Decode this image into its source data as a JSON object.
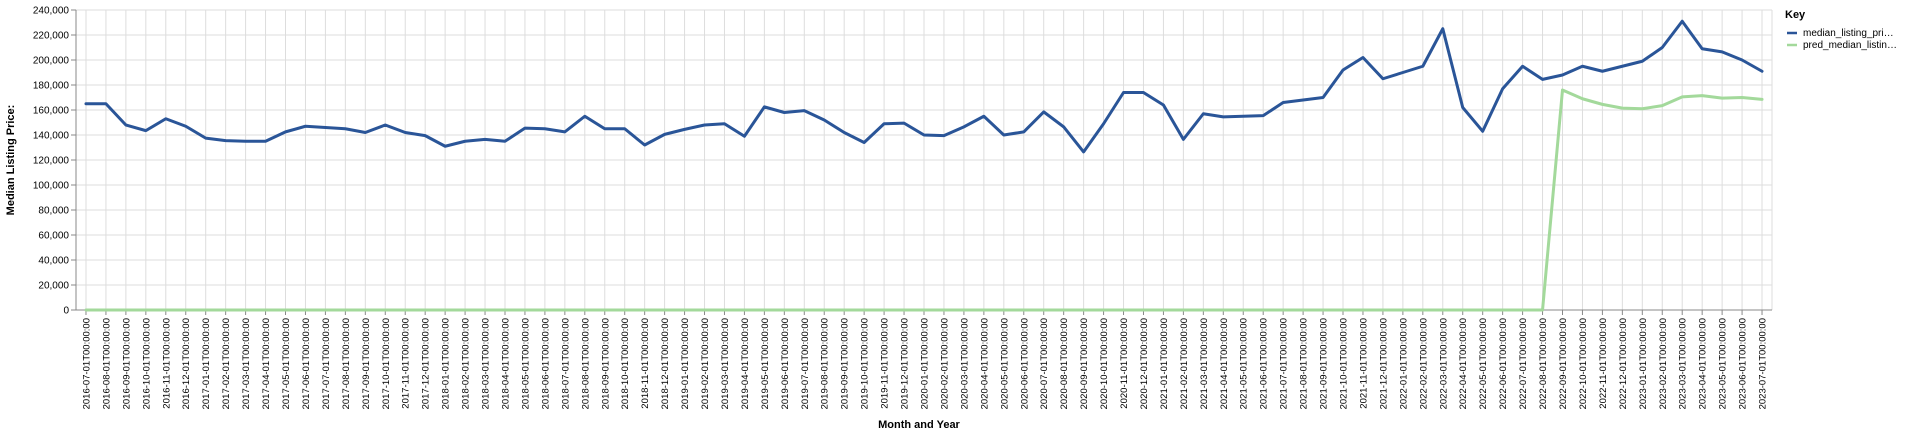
{
  "chart_data": {
    "type": "line",
    "title": "",
    "xlabel": "Month and Year",
    "ylabel": "Median Listing Price:",
    "ylim": [
      0,
      240000
    ],
    "y_ticks": [
      "0",
      "20,000",
      "40,000",
      "60,000",
      "80,000",
      "100,000",
      "120,000",
      "140,000",
      "160,000",
      "180,000",
      "200,000",
      "220,000",
      "240,000"
    ],
    "grid": true,
    "legend": {
      "title": "Key",
      "placement": "top-right",
      "labels": [
        "median_listing_pri…",
        "pred_median_listin…"
      ]
    },
    "colors": {
      "median": "#2a5598",
      "pred": "#a3d99b"
    },
    "categories": [
      "2016-07-01T00:00:00",
      "2016-08-01T00:00:00",
      "2016-09-01T00:00:00",
      "2016-10-01T00:00:00",
      "2016-11-01T00:00:00",
      "2016-12-01T00:00:00",
      "2017-01-01T00:00:00",
      "2017-02-01T00:00:00",
      "2017-03-01T00:00:00",
      "2017-04-01T00:00:00",
      "2017-05-01T00:00:00",
      "2017-06-01T00:00:00",
      "2017-07-01T00:00:00",
      "2017-08-01T00:00:00",
      "2017-09-01T00:00:00",
      "2017-10-01T00:00:00",
      "2017-11-01T00:00:00",
      "2017-12-01T00:00:00",
      "2018-01-01T00:00:00",
      "2018-02-01T00:00:00",
      "2018-03-01T00:00:00",
      "2018-04-01T00:00:00",
      "2018-05-01T00:00:00",
      "2018-06-01T00:00:00",
      "2018-07-01T00:00:00",
      "2018-08-01T00:00:00",
      "2018-09-01T00:00:00",
      "2018-10-01T00:00:00",
      "2018-11-01T00:00:00",
      "2018-12-01T00:00:00",
      "2019-01-01T00:00:00",
      "2019-02-01T00:00:00",
      "2019-03-01T00:00:00",
      "2019-04-01T00:00:00",
      "2019-05-01T00:00:00",
      "2019-06-01T00:00:00",
      "2019-07-01T00:00:00",
      "2019-08-01T00:00:00",
      "2019-09-01T00:00:00",
      "2019-10-01T00:00:00",
      "2019-11-01T00:00:00",
      "2019-12-01T00:00:00",
      "2020-01-01T00:00:00",
      "2020-02-01T00:00:00",
      "2020-03-01T00:00:00",
      "2020-04-01T00:00:00",
      "2020-05-01T00:00:00",
      "2020-06-01T00:00:00",
      "2020-07-01T00:00:00",
      "2020-08-01T00:00:00",
      "2020-09-01T00:00:00",
      "2020-10-01T00:00:00",
      "2020-11-01T00:00:00",
      "2020-12-01T00:00:00",
      "2021-01-01T00:00:00",
      "2021-02-01T00:00:00",
      "2021-03-01T00:00:00",
      "2021-04-01T00:00:00",
      "2021-05-01T00:00:00",
      "2021-06-01T00:00:00",
      "2021-07-01T00:00:00",
      "2021-08-01T00:00:00",
      "2021-09-01T00:00:00",
      "2021-10-01T00:00:00",
      "2021-11-01T00:00:00",
      "2021-12-01T00:00:00",
      "2022-01-01T00:00:00",
      "2022-02-01T00:00:00",
      "2022-03-01T00:00:00",
      "2022-04-01T00:00:00",
      "2022-05-01T00:00:00",
      "2022-06-01T00:00:00",
      "2022-07-01T00:00:00",
      "2022-08-01T00:00:00",
      "2022-09-01T00:00:00",
      "2022-10-01T00:00:00",
      "2022-11-01T00:00:00",
      "2022-12-01T00:00:00",
      "2023-01-01T00:00:00",
      "2023-02-01T00:00:00",
      "2023-03-01T00:00:00",
      "2023-04-01T00:00:00",
      "2023-05-01T00:00:00",
      "2023-06-01T00:00:00",
      "2023-07-01T00:00:00"
    ],
    "series": [
      {
        "name": "median_listing_pri…",
        "values": [
          165000,
          165000,
          148000,
          143500,
          153000,
          147000,
          137500,
          135500,
          135000,
          135000,
          142500,
          147000,
          146000,
          145000,
          142000,
          148000,
          142000,
          139500,
          131000,
          135000,
          136500,
          135000,
          145500,
          145000,
          142500,
          155000,
          145000,
          145000,
          132000,
          140500,
          144500,
          148000,
          149000,
          139000,
          162500,
          158000,
          159500,
          152000,
          142000,
          134000,
          149000,
          149500,
          140000,
          139500,
          146500,
          155000,
          140000,
          142500,
          158500,
          146500,
          126500,
          149000,
          174000,
          174000,
          164000,
          136500,
          157000,
          154500,
          155000,
          155500,
          166000,
          168000,
          170000,
          192000,
          202000,
          185000,
          190000,
          195000,
          225000,
          162000,
          143000,
          177000,
          195000,
          184500,
          188000,
          195000,
          191000,
          195000,
          199000,
          210000,
          231000,
          209000,
          206500,
          200000,
          191000
        ]
      },
      {
        "name": "pred_median_listin…",
        "values": [
          0,
          0,
          0,
          0,
          0,
          0,
          0,
          0,
          0,
          0,
          0,
          0,
          0,
          0,
          0,
          0,
          0,
          0,
          0,
          0,
          0,
          0,
          0,
          0,
          0,
          0,
          0,
          0,
          0,
          0,
          0,
          0,
          0,
          0,
          0,
          0,
          0,
          0,
          0,
          0,
          0,
          0,
          0,
          0,
          0,
          0,
          0,
          0,
          0,
          0,
          0,
          0,
          0,
          0,
          0,
          0,
          0,
          0,
          0,
          0,
          0,
          0,
          0,
          0,
          0,
          0,
          0,
          0,
          0,
          0,
          0,
          0,
          0,
          0,
          176000,
          169000,
          164500,
          161500,
          161000,
          163500,
          170500,
          171500,
          169500,
          170000,
          168500
        ]
      }
    ]
  }
}
